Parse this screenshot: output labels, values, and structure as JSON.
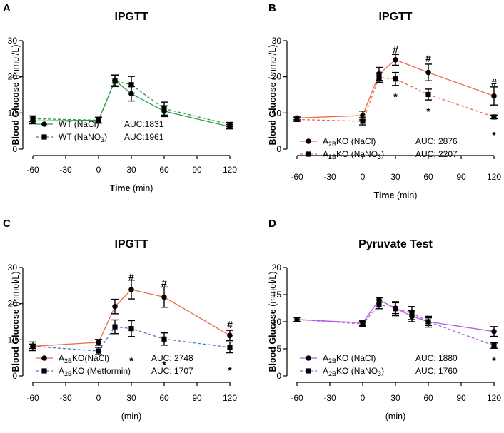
{
  "figure": {
    "panels": [
      "A",
      "B",
      "C",
      "D"
    ]
  },
  "chart_data": [
    {
      "panel": "A",
      "type": "line",
      "title": "IPGTT",
      "ylabel_bold": "Blood Glucose",
      "ylabel_unit": "(mmol/L)",
      "xlabel_bold": "Time",
      "xlabel_unit": "(min)",
      "xlim": [
        -60,
        120
      ],
      "ylim": [
        0,
        30
      ],
      "xticks": [
        -60,
        -30,
        0,
        30,
        60,
        90,
        120
      ],
      "yticks": [
        0,
        10,
        20,
        30
      ],
      "legend_position": "bottom-left",
      "series": [
        {
          "name": "WT (NaCl)",
          "name_main": "WT (NaCl)",
          "name_sub": "",
          "name_tail": "",
          "auc": "AUC:1831",
          "color": "#2e9a3e",
          "marker": "circle",
          "dashed": false,
          "x": [
            -60,
            0,
            15,
            30,
            60,
            120
          ],
          "y": [
            7.8,
            8.0,
            19.0,
            15.3,
            10.5,
            6.2
          ],
          "err": [
            0.8,
            0.8,
            1.5,
            2.0,
            1.5,
            0.6
          ]
        },
        {
          "name": "WT (NaNO3)",
          "name_main": "WT (NaNO",
          "name_sub": "3",
          "name_tail": ")",
          "auc": "AUC:1961",
          "color": "#2e9a3e",
          "marker": "square",
          "dashed": true,
          "x": [
            -60,
            0,
            15,
            30,
            60,
            120
          ],
          "y": [
            8.4,
            8.0,
            18.8,
            17.8,
            11.2,
            6.8
          ],
          "err": [
            0.8,
            0.8,
            1.5,
            2.3,
            1.8,
            0.6
          ]
        }
      ],
      "annotations": []
    },
    {
      "panel": "B",
      "type": "line",
      "title": "IPGTT",
      "ylabel_bold": "Blood Glucose",
      "ylabel_unit": "(mmol/L)",
      "xlabel_bold": "Time",
      "xlabel_unit": "(min)",
      "xlim": [
        -60,
        120
      ],
      "ylim": [
        0,
        30
      ],
      "xticks": [
        -60,
        -30,
        0,
        30,
        60,
        90,
        120
      ],
      "yticks": [
        0,
        10,
        20,
        30
      ],
      "legend_position": "bottom-left",
      "series": [
        {
          "name": "A2BKO (NaCl)",
          "name_main": "A",
          "name_sub": "2B",
          "name_tail": "KO (NaCl)",
          "auc": "AUC: 2876",
          "color": "#ee6a4e",
          "marker": "circle",
          "dashed": false,
          "x": [
            -60,
            0,
            15,
            30,
            60,
            120
          ],
          "y": [
            8.6,
            9.3,
            20.8,
            24.7,
            21.2,
            14.7
          ],
          "err": [
            0.5,
            1.2,
            1.8,
            1.5,
            2.3,
            2.5
          ]
        },
        {
          "name": "A2BKO (NaNO3)",
          "name_main": "A",
          "name_sub": "2B",
          "name_tail": "KO (NaNO",
          "name_sub2": "3",
          "name_tail2": ")",
          "auc": "AUC: 2207",
          "color": "#ee6a4e",
          "marker": "square",
          "dashed": true,
          "x": [
            -60,
            0,
            15,
            30,
            60,
            120
          ],
          "y": [
            8.2,
            7.7,
            19.8,
            19.4,
            15.1,
            8.9
          ],
          "err": [
            0.5,
            1.0,
            1.3,
            1.8,
            1.5,
            0.5
          ]
        }
      ],
      "annotations": [
        {
          "text": "#",
          "x": 30,
          "y": 27.5
        },
        {
          "text": "#",
          "x": 60,
          "y": 25.2
        },
        {
          "text": "#",
          "x": 120,
          "y": 18.5
        },
        {
          "text": "*",
          "x": 30,
          "y": 14.5
        },
        {
          "text": "*",
          "x": 60,
          "y": 10.5
        },
        {
          "text": "*",
          "x": 120,
          "y": 3.8
        }
      ]
    },
    {
      "panel": "C",
      "type": "line",
      "title": "IPGTT",
      "ylabel_bold": "Blood Glucose",
      "ylabel_unit": "(mmol/L)",
      "xlabel_bold": "",
      "xlabel_unit": "(min)",
      "xlim": [
        -60,
        120
      ],
      "ylim": [
        0,
        30
      ],
      "xticks": [
        -60,
        -30,
        0,
        30,
        60,
        90,
        120
      ],
      "yticks": [
        0,
        10,
        20,
        30
      ],
      "legend_position": "bottom-left",
      "series": [
        {
          "name": "A2BKO(NaCl)",
          "name_main": "A",
          "name_sub": "2B",
          "name_tail": "KO(NaCl)",
          "auc": "AUC: 2748",
          "color": "#ee6a4e",
          "marker": "circle",
          "dashed": false,
          "x": [
            -60,
            0,
            15,
            30,
            60,
            120
          ],
          "y": [
            8.2,
            9.3,
            19.2,
            23.9,
            21.8,
            11.2
          ],
          "err": [
            0.6,
            0.8,
            2.0,
            2.6,
            2.8,
            1.4
          ]
        },
        {
          "name": "A2BKO (Metformin)",
          "name_main": "A",
          "name_sub": "2B",
          "name_tail": "KO (Metformin)",
          "auc": "AUC: 1707",
          "color": "#4a78c8",
          "marker": "square",
          "dashed": true,
          "x": [
            -60,
            0,
            15,
            30,
            60,
            120
          ],
          "y": [
            8.2,
            6.9,
            13.6,
            13.1,
            10.2,
            7.9
          ],
          "err": [
            1.2,
            1.0,
            1.9,
            2.2,
            1.7,
            1.5
          ]
        }
      ],
      "annotations": [
        {
          "text": "#",
          "x": 30,
          "y": 27.5
        },
        {
          "text": "#",
          "x": 60,
          "y": 25.8
        },
        {
          "text": "#",
          "x": 120,
          "y": 14.2
        },
        {
          "text": "*",
          "x": 30,
          "y": 4.2
        },
        {
          "text": "*",
          "x": 60,
          "y": 3.2
        },
        {
          "text": "*",
          "x": 120,
          "y": 1.6
        }
      ]
    },
    {
      "panel": "D",
      "type": "line",
      "title": "Pyruvate Test",
      "ylabel_bold": "Blood Glucose",
      "ylabel_unit": "(mmol/L)",
      "xlabel_bold": "",
      "xlabel_unit": "(min)",
      "xlim": [
        -60,
        120
      ],
      "ylim": [
        0,
        20
      ],
      "xticks": [
        -60,
        -30,
        0,
        30,
        60,
        90,
        120
      ],
      "yticks": [
        0,
        5,
        10,
        15,
        20
      ],
      "legend_position": "bottom-left",
      "series": [
        {
          "name": "A2BKO (NaCl)",
          "name_main": "A",
          "name_sub": "2B",
          "name_tail": "KO (NaCl)",
          "auc": "AUC: 1880",
          "color": "#b25ce0",
          "marker": "circle",
          "dashed": false,
          "x": [
            -60,
            0,
            15,
            30,
            45,
            60,
            120
          ],
          "y": [
            10.4,
            9.8,
            14.0,
            12.5,
            11.0,
            10.0,
            8.2
          ],
          "err": [
            0.4,
            0.5,
            0.4,
            1.0,
            1.0,
            0.7,
            0.9
          ]
        },
        {
          "name": "A2BKO (NaNO3)",
          "name_main": "A",
          "name_sub": "2B",
          "name_tail": "KO (NaNO",
          "name_sub2": "3",
          "name_tail2": ")",
          "auc": "AUC: 1760",
          "color": "#b25ce0",
          "marker": "square",
          "dashed": true,
          "x": [
            -60,
            0,
            15,
            30,
            45,
            60,
            120
          ],
          "y": [
            10.4,
            9.6,
            13.2,
            12.4,
            11.6,
            10.0,
            5.6
          ],
          "err": [
            0.4,
            0.5,
            0.8,
            1.3,
            1.2,
            1.0,
            0.5
          ]
        }
      ],
      "annotations": [
        {
          "text": "*",
          "x": 120,
          "y": 2.8
        }
      ]
    }
  ]
}
